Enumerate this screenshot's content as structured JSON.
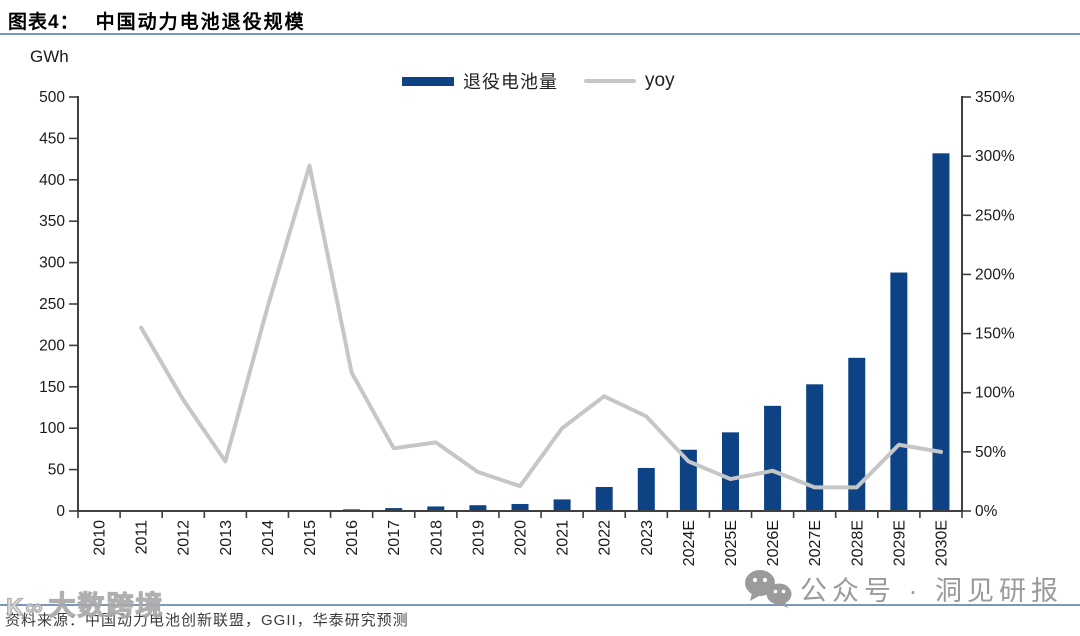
{
  "header": {
    "tag": "图表4：",
    "title": "中国动力电池退役规模"
  },
  "chart": {
    "unit_label": "GWh",
    "legend": {
      "bar_label": "退役电池量",
      "line_label": "yoy"
    }
  },
  "chart_data": {
    "type": "bar+line",
    "title": "中国动力电池退役规模",
    "categories": [
      "2010",
      "2011",
      "2012",
      "2013",
      "2014",
      "2015",
      "2016",
      "2017",
      "2018",
      "2019",
      "2020",
      "2021",
      "2022",
      "2023",
      "2024E",
      "2025E",
      "2026E",
      "2027E",
      "2028E",
      "2029E",
      "2030E"
    ],
    "series": [
      {
        "name": "退役电池量",
        "type": "bar",
        "axis": "left",
        "unit": "GWh",
        "values": [
          0,
          0,
          0,
          0,
          0.3,
          1,
          2,
          3.5,
          5.5,
          7,
          8.5,
          14,
          29,
          52,
          74,
          95,
          127,
          153,
          185,
          288,
          432
        ]
      },
      {
        "name": "yoy",
        "type": "line",
        "axis": "right",
        "unit": "%",
        "values": [
          null,
          155,
          94,
          42,
          172,
          292,
          117,
          53,
          58,
          33,
          21,
          70,
          97,
          80,
          42,
          27,
          34,
          20,
          20,
          56,
          50
        ]
      }
    ],
    "left_axis": {
      "label": "GWh",
      "min": 0,
      "max": 500,
      "step": 50
    },
    "right_axis": {
      "min": 0,
      "max": 350,
      "step": 50,
      "suffix": "%"
    },
    "grid": false,
    "legend_position": "top-center"
  },
  "colors": {
    "bar": "#0d4285",
    "line": "#c6c6c6",
    "axis": "#3f3f3f",
    "rule": "#7c97bc",
    "watermark_gray": "#9b9b9b"
  },
  "footer": {
    "source_label": "资料来源：中国动力电池创新联盟，GGII，华泰研究预测"
  },
  "watermarks": {
    "bottom_left_logo": "K∞",
    "bottom_left_text": "大数跨境",
    "bottom_right_icon": "wechat-icon",
    "bottom_right_text": "公众号 · 洞见研报"
  }
}
